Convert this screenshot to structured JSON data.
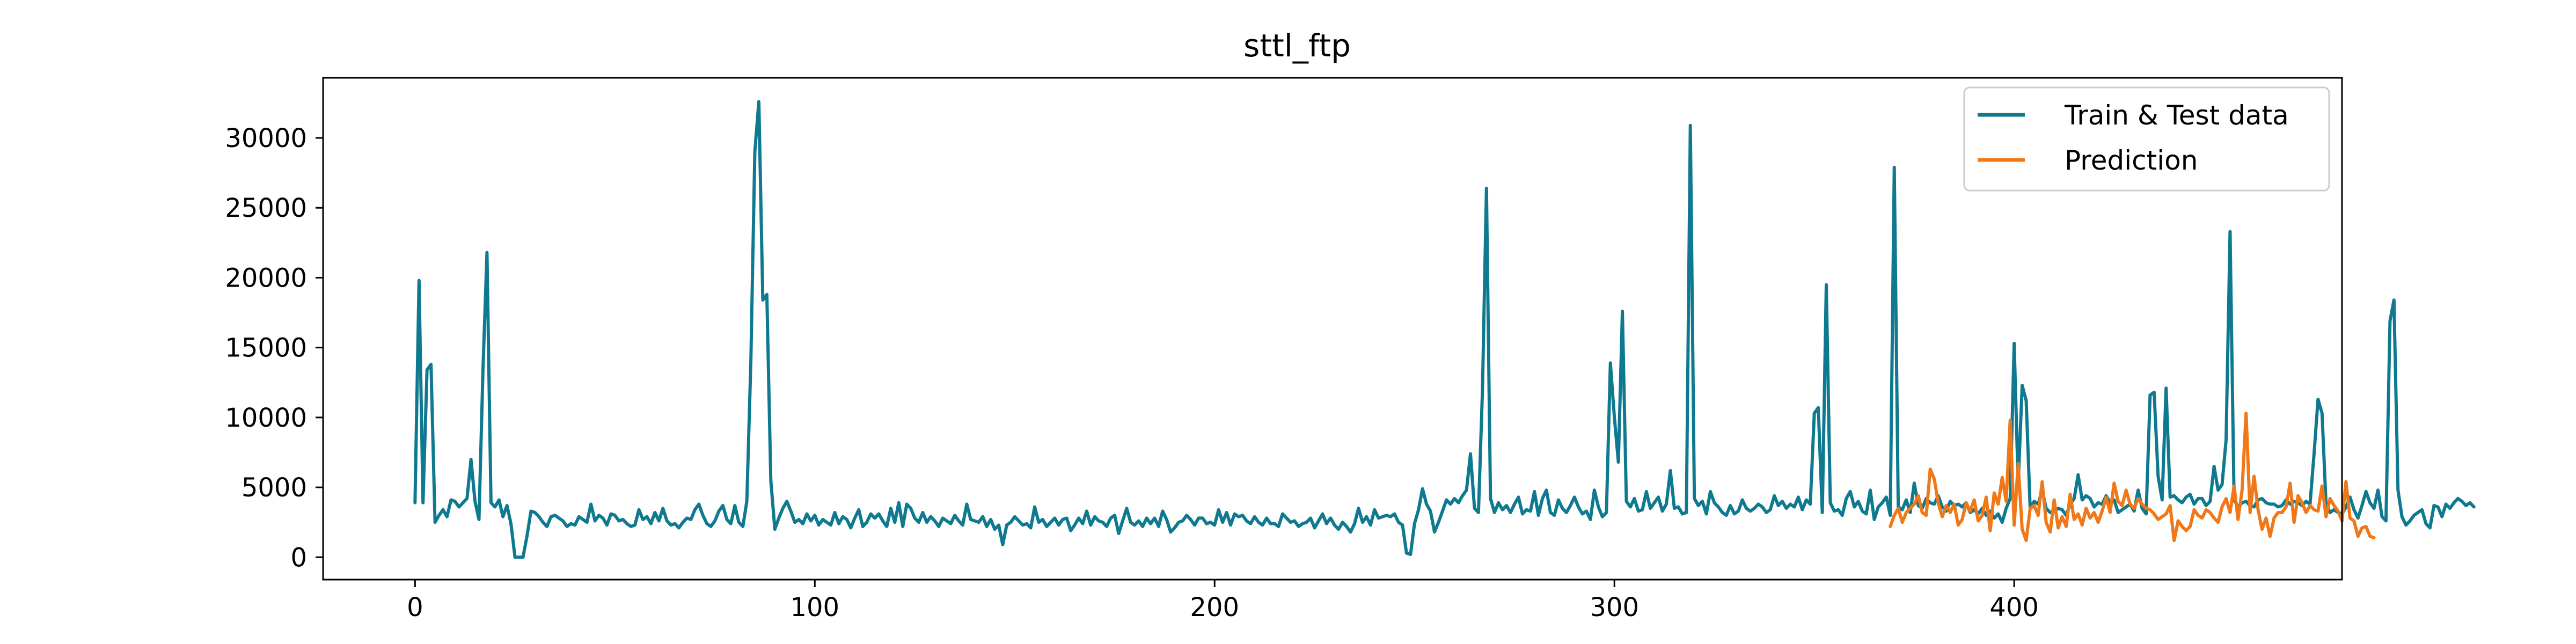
{
  "chart_data": {
    "type": "line",
    "title": "sttl_ftp",
    "xlabel": "",
    "ylabel": "",
    "xlim": [
      -23,
      482
    ],
    "ylim": [
      -1600,
      34300
    ],
    "xticks": [
      0,
      100,
      200,
      300,
      400
    ],
    "yticks": [
      0,
      5000,
      10000,
      15000,
      20000,
      25000,
      30000
    ],
    "legend": {
      "position": "top-right"
    },
    "grid": false,
    "series": [
      {
        "name": "Train & Test data",
        "color": "#0f7a8f",
        "x_start": 0,
        "values": [
          3900,
          19800,
          3900,
          13400,
          13800,
          2500,
          3000,
          3400,
          2900,
          4100,
          4000,
          3600,
          3900,
          4200,
          7000,
          4000,
          2700,
          13500,
          21800,
          3900,
          3600,
          4100,
          2900,
          3700,
          2400,
          0,
          0,
          0,
          1500,
          3300,
          3200,
          2900,
          2500,
          2200,
          2900,
          3000,
          2800,
          2600,
          2200,
          2400,
          2300,
          2900,
          2700,
          2500,
          3800,
          2600,
          3000,
          2800,
          2300,
          3100,
          3000,
          2600,
          2700,
          2400,
          2200,
          2300,
          3400,
          2700,
          2900,
          2400,
          3200,
          2600,
          3500,
          2600,
          2300,
          2400,
          2100,
          2500,
          2800,
          2700,
          3400,
          3800,
          3000,
          2400,
          2200,
          2600,
          3300,
          3700,
          2700,
          2400,
          3700,
          2500,
          2200,
          4000,
          14000,
          29000,
          32600,
          18400,
          18800,
          5500,
          2000,
          2800,
          3500,
          4000,
          3300,
          2500,
          2700,
          2400,
          3100,
          2600,
          3000,
          2300,
          2700,
          2500,
          2300,
          3200,
          2400,
          2900,
          2700,
          2100,
          2800,
          3400,
          2200,
          2500,
          3100,
          2800,
          3100,
          2600,
          2200,
          3500,
          2500,
          3900,
          2200,
          3800,
          3500,
          2800,
          2500,
          3200,
          2500,
          2900,
          2600,
          2200,
          2800,
          2600,
          2400,
          3000,
          2600,
          2300,
          3800,
          2700,
          2600,
          2500,
          2900,
          2200,
          2700,
          2000,
          2300,
          900,
          2300,
          2500,
          2900,
          2600,
          2300,
          2400,
          2100,
          3600,
          2500,
          2700,
          2200,
          2500,
          2800,
          2300,
          2700,
          2800,
          1900,
          2300,
          2800,
          2400,
          3300,
          2300,
          2900,
          2600,
          2500,
          2200,
          2800,
          3000,
          1700,
          2600,
          3500,
          2500,
          2300,
          2600,
          2200,
          2800,
          2400,
          2800,
          2200,
          3300,
          2700,
          1800,
          2100,
          2500,
          2600,
          3000,
          2700,
          2300,
          2800,
          2800,
          2400,
          2500,
          2300,
          3400,
          2500,
          3200,
          2300,
          3100,
          2900,
          3000,
          2600,
          2400,
          2900,
          2500,
          2300,
          2800,
          2400,
          2400,
          2200,
          3100,
          2800,
          2500,
          2600,
          2200,
          2400,
          2500,
          2800,
          2100,
          2600,
          3100,
          2400,
          2800,
          2300,
          2000,
          2500,
          2200,
          1800,
          2400,
          3500,
          2500,
          2900,
          2300,
          3400,
          2800,
          2900,
          3000,
          2900,
          3100,
          2500,
          2300,
          300,
          200,
          2400,
          3400,
          4900,
          3800,
          3300,
          1800,
          2500,
          3300,
          4100,
          3800,
          4200,
          3900,
          4400,
          4800,
          7400,
          3500,
          3200,
          12000,
          26400,
          4200,
          3200,
          3900,
          3400,
          3700,
          3200,
          3800,
          4300,
          3100,
          3400,
          3300,
          4700,
          3000,
          4200,
          4800,
          3200,
          3000,
          4100,
          3500,
          3200,
          3700,
          4300,
          3600,
          3100,
          3300,
          2700,
          4800,
          3600,
          2900,
          3200,
          13900,
          10000,
          6800,
          17600,
          4000,
          3600,
          4200,
          3300,
          3400,
          4700,
          3500,
          3900,
          4300,
          3300,
          3800,
          6200,
          3500,
          3600,
          3100,
          3200,
          30900,
          4200,
          3700,
          4000,
          3100,
          4700,
          3900,
          3600,
          3200,
          3000,
          3700,
          3100,
          3300,
          4100,
          3500,
          3300,
          3500,
          3800,
          3600,
          3200,
          3400,
          4400,
          3700,
          4000,
          3500,
          3800,
          3600,
          4300,
          3400,
          4100,
          3800,
          10300,
          10700,
          3200,
          19500,
          3900,
          3300,
          3400,
          3000,
          4200,
          4700,
          3600,
          4000,
          3300,
          3100,
          4800,
          2700,
          3600,
          3900,
          4300,
          3000,
          27900,
          3600,
          3400,
          4100,
          3200,
          5300,
          3700,
          3500,
          4200,
          3900,
          3800,
          4400,
          3600,
          3300,
          4000,
          3700,
          3800,
          3600,
          3900,
          3200,
          3400,
          3100,
          3500,
          3000,
          3300,
          2800,
          3100,
          2500,
          3500,
          4200,
          15300,
          5200,
          12300,
          11200,
          3500,
          4000,
          3800,
          4800,
          3500,
          3200,
          3300,
          3500,
          3400,
          3000,
          3800,
          4200,
          5900,
          4100,
          4400,
          4200,
          3600,
          3900,
          3800,
          4400,
          3900,
          4100,
          3200,
          3400,
          3600,
          3800,
          3300,
          4800,
          3500,
          3100,
          11600,
          11800,
          5800,
          4100,
          12100,
          4300,
          4400,
          4100,
          3900,
          4300,
          4500,
          3800,
          4200,
          4200,
          3700,
          4000,
          6500,
          4800,
          5200,
          8400,
          23300,
          4100,
          3600,
          3900,
          4000,
          3700,
          3600,
          4100,
          4200,
          3900,
          3800,
          3800,
          3600,
          3700,
          4100,
          3800,
          4000,
          3900,
          3700,
          4000,
          3800,
          7400,
          11300,
          10300,
          3800,
          3200,
          3400,
          3200,
          3100,
          3600,
          4300,
          3400,
          2800,
          3700,
          4700,
          3900,
          3500,
          4800,
          2900,
          2600,
          16900,
          18400,
          4800,
          2900,
          2300,
          2600,
          3000,
          3200,
          3400,
          2400,
          2100,
          3700,
          3600,
          2900,
          3800,
          3500,
          3900,
          4200,
          4000,
          3700,
          3900,
          3600
        ]
      },
      {
        "name": "Prediction",
        "color": "#f07818",
        "x_start": 369,
        "values": [
          2200,
          3000,
          3500,
          2500,
          3200,
          3500,
          3800,
          4400,
          3200,
          3000,
          6300,
          5600,
          3900,
          2900,
          3700,
          3200,
          3800,
          2300,
          2700,
          3900,
          3300,
          4100,
          2600,
          3000,
          4300,
          1900,
          4600,
          3800,
          5700,
          4000,
          9800,
          2300,
          6700,
          2000,
          1200,
          3500,
          3700,
          3000,
          5400,
          2500,
          1800,
          4100,
          2100,
          2900,
          2200,
          4500,
          2700,
          3100,
          2300,
          3500,
          2800,
          3200,
          2500,
          3300,
          4300,
          3200,
          5300,
          4000,
          3700,
          4800,
          3800,
          3500,
          4200,
          3800,
          3500,
          3400,
          3100,
          2700,
          2900,
          3100,
          3700,
          1200,
          2600,
          2200,
          1900,
          2200,
          3400,
          3000,
          2800,
          3400,
          3200,
          2800,
          2500,
          3600,
          4200,
          3200,
          5100,
          2700,
          4800,
          10300,
          3200,
          5800,
          3400,
          2000,
          2800,
          1500,
          2800,
          3200,
          3200,
          3600,
          5300,
          2500,
          4400,
          3900,
          3200,
          3700,
          3400,
          3300,
          5100,
          2900,
          4200,
          3700,
          3300,
          2600,
          5400,
          2800,
          2600,
          1500,
          2100,
          2200,
          1500,
          1400
        ]
      }
    ]
  }
}
